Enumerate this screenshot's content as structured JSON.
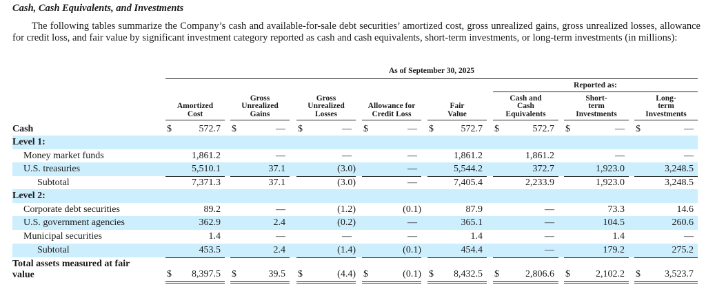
{
  "heading": "Cash, Cash Equivalents, and Investments",
  "intro": "The following tables summarize the Company’s cash and available-for-sale debt securities’ amortized cost, gross unrealized gains, gross unrealized losses, allowance for credit loss, and fair value by significant investment category reported as cash and cash equivalents, short-term investments, or long-term investments (in millions):",
  "table": {
    "period_label": "As of September 30, 2025",
    "reported_as_label": "Reported as:",
    "columns": [
      {
        "label": "Amortized Cost",
        "lines": [
          "Amortized",
          "Cost"
        ]
      },
      {
        "label": "Gross Unrealized Gains",
        "lines": [
          "Gross",
          "Unrealized",
          "Gains"
        ]
      },
      {
        "label": "Gross Unrealized Losses",
        "lines": [
          "Gross",
          "Unrealized",
          "Losses"
        ]
      },
      {
        "label": "Allowance for Credit Loss",
        "lines": [
          "Allowance for",
          "Credit Loss"
        ]
      },
      {
        "label": "Fair Value",
        "lines": [
          "Fair",
          "Value"
        ]
      },
      {
        "label": "Cash and Cash Equivalents",
        "lines": [
          "Cash and",
          "Cash",
          "Equivalents"
        ]
      },
      {
        "label": "Short-term Investments",
        "lines": [
          "Short-",
          "term",
          "Investments"
        ]
      },
      {
        "label": "Long-term Investments",
        "lines": [
          "Long-",
          "term",
          "Investments"
        ]
      }
    ],
    "currency_symbol": "$",
    "rows": [
      {
        "label": "Cash",
        "style": "bold",
        "values": [
          "572.7",
          "—",
          "—",
          "—",
          "572.7",
          "572.7",
          "—",
          "—"
        ]
      },
      {
        "label": "Level 1:",
        "style": "bold-section",
        "values": []
      },
      {
        "label": "Money market funds",
        "style": "indent",
        "values": [
          "1,861.2",
          "—",
          "—",
          "—",
          "1,861.2",
          "1,861.2",
          "—",
          "—"
        ]
      },
      {
        "label": "U.S. treasuries",
        "style": "indent",
        "values": [
          "5,510.1",
          "37.1",
          "(3.0)",
          "—",
          "5,544.2",
          "372.7",
          "1,923.0",
          "3,248.5"
        ]
      },
      {
        "label": "Subtotal",
        "style": "subtotal",
        "values": [
          "7,371.3",
          "37.1",
          "(3.0)",
          "—",
          "7,405.4",
          "2,233.9",
          "1,923.0",
          "3,248.5"
        ]
      },
      {
        "label": "Level 2:",
        "style": "bold-section",
        "values": []
      },
      {
        "label": "Corporate debt securities",
        "style": "indent",
        "values": [
          "89.2",
          "—",
          "(1.2)",
          "(0.1)",
          "87.9",
          "—",
          "73.3",
          "14.6"
        ]
      },
      {
        "label": "U.S. government agencies",
        "style": "indent",
        "values": [
          "362.9",
          "2.4",
          "(0.2)",
          "—",
          "365.1",
          "—",
          "104.5",
          "260.6"
        ]
      },
      {
        "label": "Municipal securities",
        "style": "indent",
        "values": [
          "1.4",
          "—",
          "—",
          "—",
          "1.4",
          "—",
          "1.4",
          "—"
        ]
      },
      {
        "label": "Subtotal",
        "style": "subtotal",
        "values": [
          "453.5",
          "2.4",
          "(1.4)",
          "(0.1)",
          "454.4",
          "—",
          "179.2",
          "275.2"
        ]
      }
    ],
    "total": {
      "label": "Total assets measured at fair value",
      "label_lines": [
        "Total assets measured at fair",
        "value"
      ],
      "values": [
        "8,397.5",
        "39.5",
        "(4.4)",
        "(0.1)",
        "8,432.5",
        "2,806.6",
        "2,102.2",
        "3,523.7"
      ]
    }
  },
  "colors": {
    "row_shade": "#cdeefc",
    "rule": "#222222",
    "text": "#1a1a1a"
  }
}
